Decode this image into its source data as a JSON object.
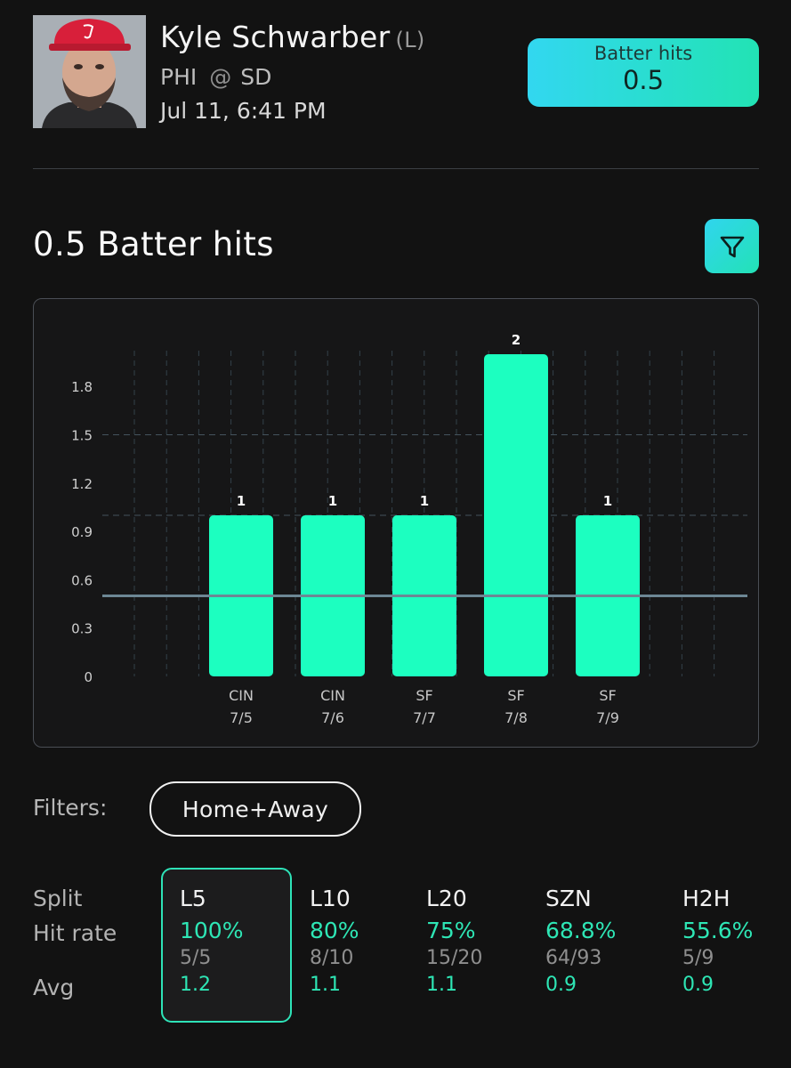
{
  "player": {
    "name": "Kyle Schwarber",
    "hand": "(L)",
    "team": "PHI",
    "at": "@",
    "opponent": "SD",
    "datetime": "Jul 11, 6:41 PM"
  },
  "prop": {
    "label": "Batter hits",
    "value": "0.5"
  },
  "section_title": "0.5 Batter hits",
  "icons": {
    "filter": "filter-funnel-icon",
    "avatar": "player-headshot"
  },
  "colors": {
    "accent": "#1cffc0",
    "teal": "#30d5ee",
    "line": "#6d8794"
  },
  "chart_data": {
    "type": "bar",
    "categories": [
      "CIN 7/5",
      "CIN 7/6",
      "SF 7/7",
      "SF 7/8",
      "SF 7/9"
    ],
    "teams": [
      "CIN",
      "CIN",
      "SF",
      "SF",
      "SF"
    ],
    "dates": [
      "7/5",
      "7/6",
      "7/7",
      "7/8",
      "7/9"
    ],
    "values": [
      1,
      1,
      1,
      2,
      1
    ],
    "data_labels": [
      "1",
      "1",
      "1",
      "2",
      "1"
    ],
    "y_ticks": [
      "0",
      "0.3",
      "0.6",
      "0.9",
      "1.2",
      "1.5",
      "1.8"
    ],
    "ylim": [
      0,
      2
    ],
    "threshold": 0.5,
    "title": "",
    "xlabel": "",
    "ylabel": "",
    "grid": true
  },
  "filters": {
    "label": "Filters:",
    "selected": "Home+Away"
  },
  "splits": {
    "row_labels": {
      "split": "Split",
      "hit_rate": "Hit rate",
      "avg": "Avg"
    },
    "columns": [
      {
        "name": "L5",
        "rate": "100%",
        "frac": "5/5",
        "avg": "1.2"
      },
      {
        "name": "L10",
        "rate": "80%",
        "frac": "8/10",
        "avg": "1.1"
      },
      {
        "name": "L20",
        "rate": "75%",
        "frac": "15/20",
        "avg": "1.1"
      },
      {
        "name": "SZN",
        "rate": "68.8%",
        "frac": "64/93",
        "avg": "0.9"
      },
      {
        "name": "H2H",
        "rate": "55.6%",
        "frac": "5/9",
        "avg": "0.9"
      }
    ]
  }
}
